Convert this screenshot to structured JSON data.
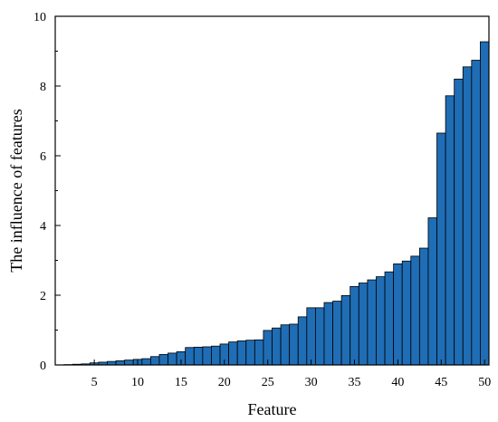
{
  "chart_data": {
    "type": "bar",
    "title": "",
    "xlabel": "Feature",
    "ylabel": "The influence of features",
    "xlim": [
      0.5,
      50.5
    ],
    "ylim": [
      0,
      10
    ],
    "x_ticks": [
      5,
      10,
      15,
      20,
      25,
      30,
      35,
      40,
      45,
      50
    ],
    "y_ticks": [
      0,
      2,
      4,
      6,
      8,
      10
    ],
    "grid": false,
    "legend": "none",
    "bar_color": "#1f6db5",
    "categories": [
      1,
      2,
      3,
      4,
      5,
      6,
      7,
      8,
      9,
      10,
      11,
      12,
      13,
      14,
      15,
      16,
      17,
      18,
      19,
      20,
      21,
      22,
      23,
      24,
      25,
      26,
      27,
      28,
      29,
      30,
      31,
      32,
      33,
      34,
      35,
      36,
      37,
      38,
      39,
      40,
      41,
      42,
      43,
      44,
      45,
      46,
      47,
      48,
      49,
      50
    ],
    "values": [
      0.0,
      0.01,
      0.02,
      0.03,
      0.06,
      0.08,
      0.1,
      0.12,
      0.14,
      0.16,
      0.18,
      0.24,
      0.3,
      0.34,
      0.38,
      0.5,
      0.51,
      0.52,
      0.54,
      0.6,
      0.66,
      0.69,
      0.71,
      0.72,
      0.99,
      1.06,
      1.15,
      1.17,
      1.38,
      1.64,
      1.64,
      1.79,
      1.83,
      1.99,
      2.25,
      2.35,
      2.44,
      2.53,
      2.67,
      2.9,
      2.98,
      3.12,
      3.35,
      4.22,
      6.65,
      7.72,
      8.2,
      8.55,
      8.74,
      9.27
    ]
  }
}
